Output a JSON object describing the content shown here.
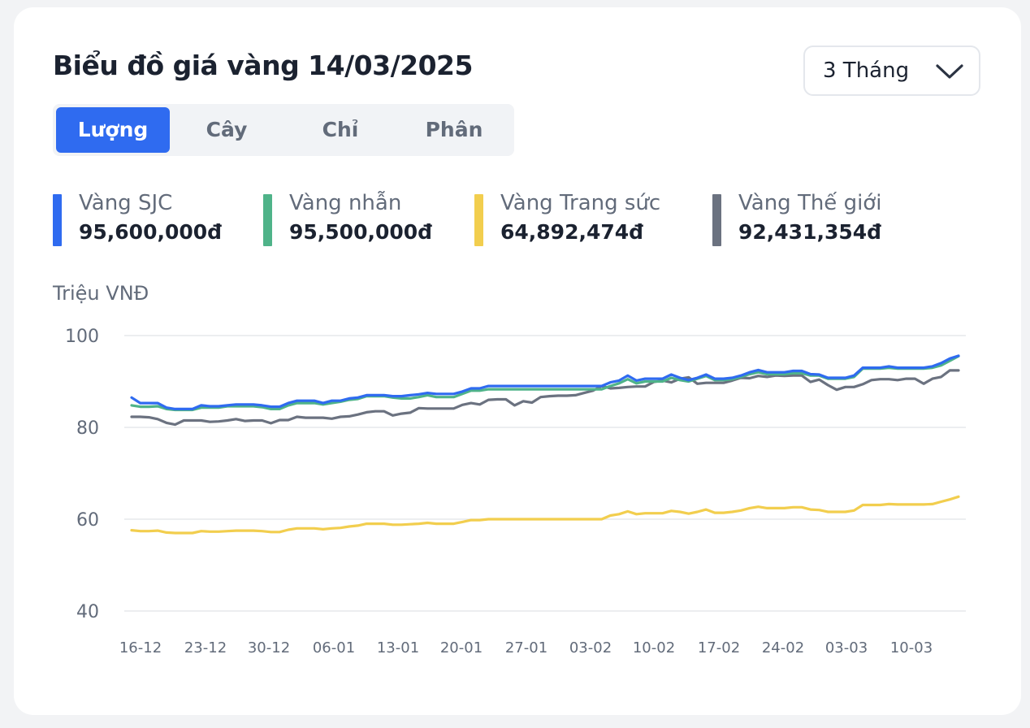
{
  "header": {
    "title": "Biểu đồ giá vàng 14/03/2025"
  },
  "range_select": {
    "selected": "3 Tháng",
    "icon": "chevron-down-icon"
  },
  "tabs": [
    {
      "label": "Lượng",
      "active": true
    },
    {
      "label": "Cây",
      "active": false
    },
    {
      "label": "Chỉ",
      "active": false
    },
    {
      "label": "Phân",
      "active": false
    }
  ],
  "legend": [
    {
      "name": "Vàng SJC",
      "value": "95,600,000đ",
      "color": "#2f6bf0"
    },
    {
      "name": "Vàng nhẫn",
      "value": "95,500,000đ",
      "color": "#4fb389"
    },
    {
      "name": "Vàng Trang sức",
      "value": "64,892,474đ",
      "color": "#f2ce4e"
    },
    {
      "name": "Vàng Thế giới",
      "value": "92,431,354đ",
      "color": "#6b7280"
    }
  ],
  "chart_data": {
    "type": "line",
    "ylabel": "Triệu VNĐ",
    "ylim": [
      40,
      100
    ],
    "yticks": [
      100,
      80,
      60,
      40
    ],
    "x_tick_labels": [
      "16-12",
      "23-12",
      "30-12",
      "06-01",
      "13-01",
      "20-01",
      "27-01",
      "03-02",
      "10-02",
      "17-02",
      "24-02",
      "03-03",
      "10-03"
    ],
    "grid": true,
    "series": [
      {
        "name": "Vàng SJC",
        "color": "#2f6bf0",
        "values": [
          86.5,
          85.3,
          85.3,
          85.3,
          84.3,
          84,
          84,
          84,
          84.8,
          84.6,
          84.6,
          84.8,
          85,
          85,
          85,
          84.8,
          84.5,
          84.5,
          85.3,
          85.8,
          85.8,
          85.8,
          85.3,
          85.8,
          85.8,
          86.3,
          86.5,
          87,
          87,
          87,
          86.8,
          86.8,
          87,
          87.2,
          87.5,
          87.3,
          87.3,
          87.3,
          87.8,
          88.5,
          88.5,
          89,
          89,
          89,
          89,
          89,
          89,
          89,
          89,
          89,
          89,
          89,
          89,
          89,
          89,
          89.8,
          90.2,
          91.3,
          90.2,
          90.6,
          90.6,
          90.6,
          91.5,
          90.8,
          90.3,
          90.8,
          91.5,
          90.6,
          90.6,
          90.8,
          91.3,
          92,
          92.5,
          92,
          92,
          92,
          92.3,
          92.3,
          91.6,
          91.5,
          90.8,
          90.8,
          90.8,
          91.3,
          93,
          93,
          93,
          93.3,
          93,
          93,
          93,
          93,
          93.3,
          94,
          95,
          95.6
        ]
      },
      {
        "name": "Vàng nhẫn",
        "color": "#4fb389",
        "values": [
          84.8,
          84.5,
          84.5,
          84.6,
          84,
          83.8,
          83.8,
          83.8,
          84.3,
          84.3,
          84.3,
          84.6,
          84.6,
          84.6,
          84.6,
          84.4,
          84,
          84,
          84.8,
          85.3,
          85.3,
          85.3,
          85,
          85.3,
          85.6,
          86,
          86.2,
          86.8,
          86.8,
          86.8,
          86.5,
          86.3,
          86.3,
          86.6,
          87,
          86.6,
          86.6,
          86.6,
          87.3,
          88,
          88,
          88.3,
          88.3,
          88.3,
          88.3,
          88.3,
          88.3,
          88.3,
          88.3,
          88.3,
          88.3,
          88.3,
          88.3,
          88.3,
          88.3,
          89,
          89.6,
          90.5,
          89.6,
          90,
          90,
          90,
          90.8,
          90.3,
          90,
          90.6,
          91.2,
          90.3,
          90.3,
          90.5,
          91,
          91.6,
          92,
          91.6,
          91.6,
          91.6,
          91.8,
          91.8,
          91.3,
          91.3,
          90.6,
          90.6,
          90.6,
          91,
          92.8,
          92.8,
          92.8,
          93,
          92.8,
          92.8,
          92.8,
          92.8,
          93,
          93.5,
          94.5,
          95.5
        ]
      },
      {
        "name": "Vàng Trang sức",
        "color": "#f2ce4e",
        "values": [
          57.6,
          57.4,
          57.4,
          57.5,
          57.1,
          57,
          57,
          57,
          57.4,
          57.3,
          57.3,
          57.4,
          57.5,
          57.5,
          57.5,
          57.4,
          57.2,
          57.2,
          57.7,
          58,
          58,
          58,
          57.8,
          58,
          58.1,
          58.4,
          58.6,
          59,
          59,
          59,
          58.8,
          58.8,
          58.9,
          59,
          59.2,
          59,
          59,
          59,
          59.4,
          59.8,
          59.8,
          60,
          60,
          60,
          60,
          60,
          60,
          60,
          60,
          60,
          60,
          60,
          60,
          60,
          60,
          60.8,
          61.1,
          61.7,
          61.1,
          61.3,
          61.3,
          61.3,
          61.8,
          61.6,
          61.2,
          61.6,
          62.1,
          61.4,
          61.4,
          61.6,
          61.9,
          62.4,
          62.7,
          62.4,
          62.4,
          62.4,
          62.6,
          62.6,
          62.1,
          62,
          61.6,
          61.6,
          61.6,
          61.9,
          63.1,
          63.1,
          63.1,
          63.3,
          63.2,
          63.2,
          63.2,
          63.2,
          63.3,
          63.8,
          64.3,
          64.9
        ]
      },
      {
        "name": "Vàng Thế giới",
        "color": "#6b7280",
        "values": [
          82.3,
          82.3,
          82.2,
          81.8,
          81,
          80.6,
          81.5,
          81.5,
          81.5,
          81.2,
          81.3,
          81.5,
          81.8,
          81.4,
          81.5,
          81.5,
          80.9,
          81.6,
          81.6,
          82.3,
          82.1,
          82.1,
          82.1,
          81.9,
          82.3,
          82.4,
          82.8,
          83.3,
          83.5,
          83.5,
          82.6,
          83,
          83.2,
          84.2,
          84.1,
          84.1,
          84.1,
          84.1,
          84.9,
          85.3,
          85,
          86,
          86.1,
          86.1,
          84.8,
          85.7,
          85.4,
          86.6,
          86.8,
          86.9,
          86.9,
          87,
          87.5,
          88,
          89,
          88.5,
          88.6,
          88.8,
          88.9,
          88.9,
          89.9,
          90.2,
          89.8,
          90.6,
          90.9,
          89.5,
          89.7,
          89.7,
          89.7,
          90.2,
          90.8,
          90.7,
          91.2,
          91,
          91.3,
          91.2,
          91.3,
          91.3,
          89.9,
          90.4,
          89.2,
          88.2,
          88.8,
          88.8,
          89.4,
          90.3,
          90.5,
          90.5,
          90.3,
          90.6,
          90.6,
          89.5,
          90.6,
          91,
          92.4,
          92.4
        ]
      }
    ]
  }
}
